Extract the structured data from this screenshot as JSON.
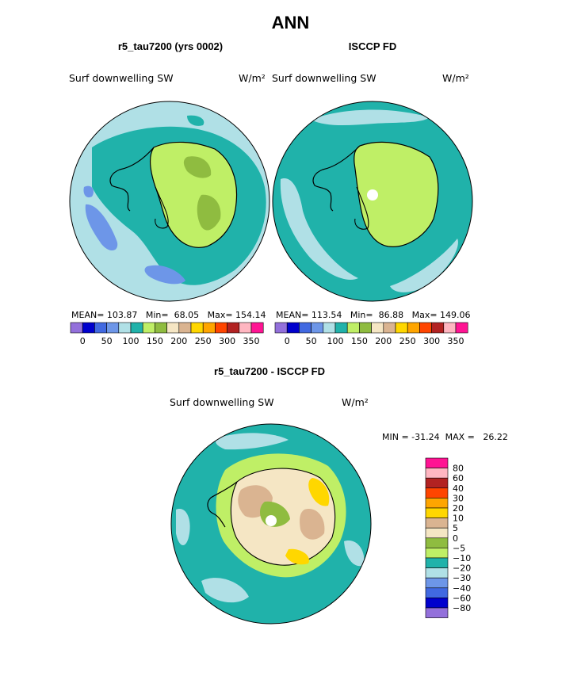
{
  "title": "ANN",
  "colors": {
    "ocean_dark": "#20b2aa",
    "ocean_light": "#b0e0e6",
    "land_green": "#bfef66",
    "land_dark": "#8fbc40",
    "blue_low": "#6d96e8",
    "tan": "#dab491",
    "cream": "#f5e6c4",
    "yellow": "#ffd700",
    "coast": "#000000"
  },
  "panels": [
    {
      "id": "model",
      "title": "r5_tau7200 (yrs 0002)",
      "variable": "Surf downwelling SW",
      "units": "W/m²",
      "stats": "MEAN= 103.87   Min=  68.05   Max= 154.14"
    },
    {
      "id": "obs",
      "title": "ISCCP FD",
      "variable": "Surf downwelling SW",
      "units": "W/m²",
      "stats": "MEAN= 113.54   Min=  86.88   Max= 149.06"
    }
  ],
  "diff_panel": {
    "title": "r5_tau7200 - ISCCP FD",
    "variable": "Surf downwelling SW",
    "units": "W/m²",
    "stats": "MIN = -31.24  MAX =   26.22"
  },
  "chart_data": [
    {
      "type": "heatmap",
      "projection": "polar stereographic (south pole)",
      "title": "r5_tau7200 (yrs 0002)",
      "colorbar": {
        "orientation": "horizontal",
        "colors": [
          "#9370db",
          "#0000cd",
          "#4169e1",
          "#6d96e8",
          "#b0e0e6",
          "#20b2aa",
          "#bfef66",
          "#8fbc40",
          "#f5e6c4",
          "#dab491",
          "#ffd700",
          "#ffa500",
          "#ff4500",
          "#b22222",
          "#ffb6c1",
          "#ff1493"
        ],
        "tick_labels": [
          "0",
          "50",
          "100",
          "150",
          "200",
          "250",
          "300",
          "350"
        ]
      },
      "mean": 103.87,
      "min": 68.05,
      "max": 154.14
    },
    {
      "type": "heatmap",
      "projection": "polar stereographic (south pole)",
      "title": "ISCCP FD",
      "colorbar": {
        "orientation": "horizontal",
        "colors": [
          "#9370db",
          "#0000cd",
          "#4169e1",
          "#6d96e8",
          "#b0e0e6",
          "#20b2aa",
          "#bfef66",
          "#8fbc40",
          "#f5e6c4",
          "#dab491",
          "#ffd700",
          "#ffa500",
          "#ff4500",
          "#b22222",
          "#ffb6c1",
          "#ff1493"
        ],
        "tick_labels": [
          "0",
          "50",
          "100",
          "150",
          "200",
          "250",
          "300",
          "350"
        ]
      },
      "mean": 113.54,
      "min": 86.88,
      "max": 149.06
    },
    {
      "type": "heatmap",
      "projection": "polar stereographic (south pole)",
      "title": "r5_tau7200 - ISCCP FD",
      "colorbar": {
        "orientation": "vertical",
        "colors": [
          "#ff1493",
          "#ffb6c1",
          "#b22222",
          "#ff4500",
          "#ffa500",
          "#ffd700",
          "#dab491",
          "#f5e6c4",
          "#8fbc40",
          "#bfef66",
          "#20b2aa",
          "#b0e0e6",
          "#6d96e8",
          "#4169e1",
          "#0000cd",
          "#9370db"
        ],
        "tick_labels": [
          "80",
          "60",
          "40",
          "30",
          "20",
          "10",
          "5",
          "0",
          "−5",
          "−10",
          "−20",
          "−30",
          "−40",
          "−60",
          "−80"
        ]
      },
      "min": -31.24,
      "max": 26.22
    }
  ]
}
